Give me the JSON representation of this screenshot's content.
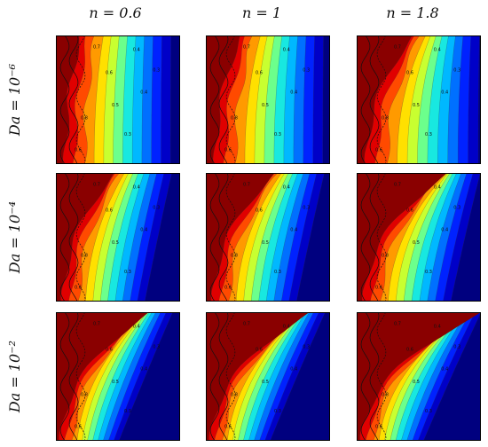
{
  "columns": [
    {
      "label": "n = 0.6",
      "n": 0.6
    },
    {
      "label": "n = 1",
      "n": 1
    },
    {
      "label": "n = 1.8",
      "n": 1.8
    }
  ],
  "rows": [
    {
      "label": "Da = 10⁻⁶",
      "da_exp": -6
    },
    {
      "label": "Da = 10⁻⁴",
      "da_exp": -4
    },
    {
      "label": "Da = 10⁻²",
      "da_exp": -2
    }
  ],
  "contour_levels": [
    "0.9",
    "0.8",
    "0.7",
    "0.6",
    "0.5",
    "0.4",
    "0.3",
    "0.2",
    "0.1"
  ],
  "palette": [
    "#00007f",
    "#0000c8",
    "#0022ff",
    "#0070ff",
    "#00b8ff",
    "#18e8e0",
    "#6cff8c",
    "#c8ff30",
    "#ffe000",
    "#ff9a00",
    "#ff4a00",
    "#e00000",
    "#8a0000"
  ]
}
